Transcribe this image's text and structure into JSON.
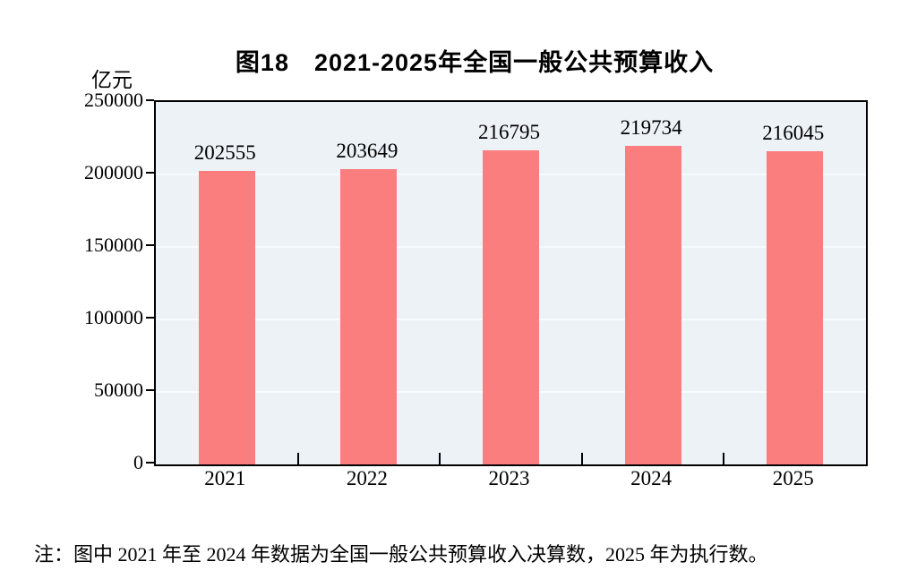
{
  "figure": {
    "title": "图18　2021-2025年全国一般公共预算收入",
    "unit_label": "亿元",
    "note": "注：图中 2021 年至 2024 年数据为全国一般公共预算收入决算数，2025 年为执行数。"
  },
  "chart_data": {
    "type": "bar",
    "title": "图18　2021-2025年全国一般公共预算收入",
    "categories": [
      "2021",
      "2022",
      "2023",
      "2024",
      "2025"
    ],
    "values": [
      202555,
      203649,
      216795,
      219734,
      216045
    ],
    "value_labels": [
      "202555",
      "203649",
      "216795",
      "219734",
      "216045"
    ],
    "xlabel": "",
    "ylabel": "亿元",
    "ylim": [
      0,
      250000
    ],
    "yticks": [
      0,
      50000,
      100000,
      150000,
      200000,
      250000
    ],
    "ytick_labels": [
      "0",
      "50000",
      "100000",
      "150000",
      "200000",
      "250000"
    ],
    "grid": true,
    "legend": "none",
    "colors": {
      "bar": "#FB7E7E",
      "plot_bg": "#EDF2F7",
      "gridline": "#F8FBFD",
      "axis": "#000000",
      "text": "#000000"
    }
  }
}
